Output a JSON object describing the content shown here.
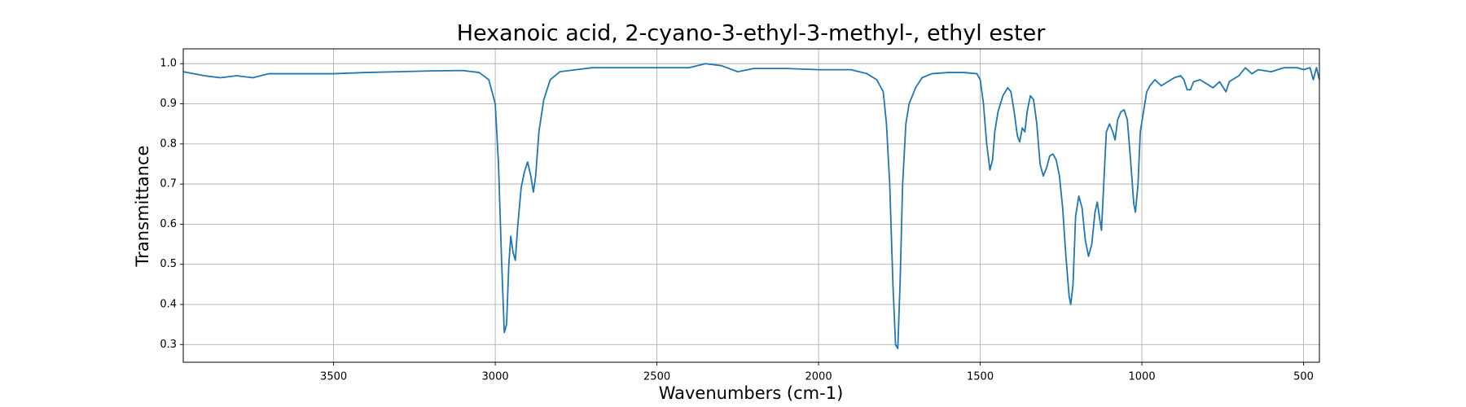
{
  "chart_data": {
    "type": "line",
    "title": "Hexanoic acid, 2-cyano-3-ethyl-3-methyl-, ethyl ester",
    "x_label": "Wavenumbers (cm-1)",
    "y_label": "Transmittance",
    "x": [
      3965,
      3900,
      3850,
      3800,
      3750,
      3700,
      3650,
      3600,
      3500,
      3400,
      3300,
      3200,
      3100,
      3050,
      3020,
      3000,
      2990,
      2980,
      2972,
      2965,
      2958,
      2952,
      2945,
      2938,
      2930,
      2920,
      2910,
      2900,
      2890,
      2882,
      2875,
      2865,
      2850,
      2830,
      2800,
      2750,
      2700,
      2600,
      2500,
      2400,
      2350,
      2300,
      2250,
      2200,
      2100,
      2000,
      1900,
      1850,
      1820,
      1800,
      1790,
      1780,
      1770,
      1762,
      1755,
      1748,
      1740,
      1730,
      1720,
      1700,
      1680,
      1650,
      1600,
      1550,
      1510,
      1500,
      1490,
      1480,
      1470,
      1462,
      1455,
      1445,
      1430,
      1415,
      1405,
      1395,
      1385,
      1378,
      1370,
      1362,
      1355,
      1345,
      1335,
      1325,
      1315,
      1305,
      1295,
      1285,
      1275,
      1265,
      1255,
      1245,
      1235,
      1225,
      1220,
      1213,
      1205,
      1195,
      1185,
      1175,
      1165,
      1155,
      1145,
      1138,
      1130,
      1125,
      1118,
      1110,
      1100,
      1090,
      1083,
      1075,
      1065,
      1055,
      1045,
      1035,
      1025,
      1020,
      1012,
      1005,
      995,
      985,
      975,
      960,
      940,
      920,
      900,
      880,
      870,
      860,
      850,
      840,
      820,
      800,
      780,
      760,
      740,
      730,
      700,
      680,
      660,
      640,
      600,
      560,
      520,
      500,
      480,
      470,
      460,
      451
    ],
    "series": [
      {
        "name": "Transmittance",
        "color": "#1f77b4",
        "values": [
          0.98,
          0.97,
          0.965,
          0.97,
          0.965,
          0.975,
          0.975,
          0.975,
          0.975,
          0.978,
          0.98,
          0.982,
          0.983,
          0.978,
          0.96,
          0.9,
          0.75,
          0.5,
          0.33,
          0.35,
          0.5,
          0.57,
          0.53,
          0.51,
          0.6,
          0.69,
          0.73,
          0.755,
          0.72,
          0.68,
          0.72,
          0.83,
          0.91,
          0.96,
          0.98,
          0.985,
          0.99,
          0.99,
          0.99,
          0.99,
          1.0,
          0.995,
          0.98,
          0.988,
          0.988,
          0.985,
          0.985,
          0.975,
          0.96,
          0.93,
          0.85,
          0.7,
          0.45,
          0.3,
          0.29,
          0.45,
          0.7,
          0.85,
          0.9,
          0.94,
          0.965,
          0.975,
          0.978,
          0.978,
          0.975,
          0.96,
          0.9,
          0.8,
          0.735,
          0.76,
          0.83,
          0.88,
          0.92,
          0.94,
          0.93,
          0.88,
          0.82,
          0.805,
          0.84,
          0.83,
          0.88,
          0.92,
          0.91,
          0.85,
          0.75,
          0.72,
          0.74,
          0.77,
          0.775,
          0.76,
          0.72,
          0.64,
          0.52,
          0.42,
          0.4,
          0.45,
          0.62,
          0.67,
          0.64,
          0.56,
          0.52,
          0.55,
          0.63,
          0.655,
          0.61,
          0.585,
          0.7,
          0.83,
          0.85,
          0.83,
          0.81,
          0.86,
          0.88,
          0.885,
          0.86,
          0.76,
          0.65,
          0.63,
          0.7,
          0.83,
          0.88,
          0.93,
          0.945,
          0.96,
          0.945,
          0.955,
          0.965,
          0.97,
          0.96,
          0.935,
          0.935,
          0.955,
          0.96,
          0.95,
          0.94,
          0.955,
          0.93,
          0.955,
          0.97,
          0.99,
          0.975,
          0.985,
          0.98,
          0.99,
          0.99,
          0.985,
          0.99,
          0.96,
          0.99,
          0.96
        ]
      }
    ],
    "xlim": [
      3965,
      451
    ],
    "ylim": [
      0.256,
      1.037
    ],
    "xticks": [
      3500,
      3000,
      2500,
      2000,
      1500,
      1000,
      500
    ],
    "yticks": [
      0.3,
      0.4,
      0.5,
      0.6,
      0.7,
      0.8,
      0.9,
      {
        "value": 1,
        "label": "1.0"
      }
    ],
    "grid": true
  }
}
